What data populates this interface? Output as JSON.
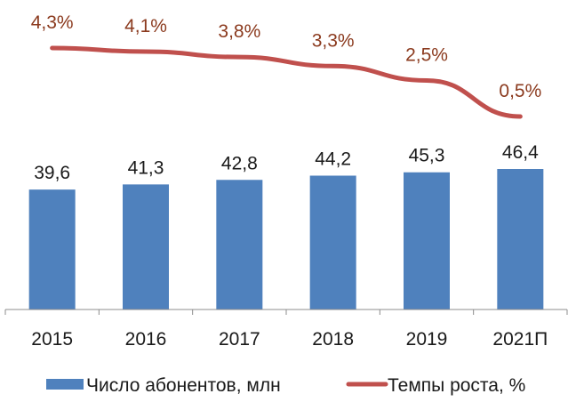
{
  "chart_data": {
    "type": "bar",
    "categories": [
      "2015",
      "2016",
      "2017",
      "2018",
      "2019",
      "2021П"
    ],
    "series": [
      {
        "name": "Число абонентов, млн",
        "type": "bar",
        "values": [
          39.6,
          41.3,
          42.8,
          44.2,
          45.3,
          46.4
        ],
        "labels": [
          "39,6",
          "41,3",
          "42,8",
          "44,2",
          "45,3",
          "46,4"
        ],
        "color": "#4F81BD"
      },
      {
        "name": "Темпы роста, %",
        "type": "line",
        "values": [
          4.3,
          4.1,
          3.8,
          3.3,
          2.5,
          0.5
        ],
        "labels": [
          "4,3%",
          "4,1%",
          "3,8%",
          "3,3%",
          "2,5%",
          "0,5%"
        ],
        "color": "#C0504D",
        "label_color": "#8B3A1E"
      }
    ],
    "title": "",
    "xlabel": "",
    "ylabel": "",
    "legend_position": "bottom",
    "grid": false
  }
}
